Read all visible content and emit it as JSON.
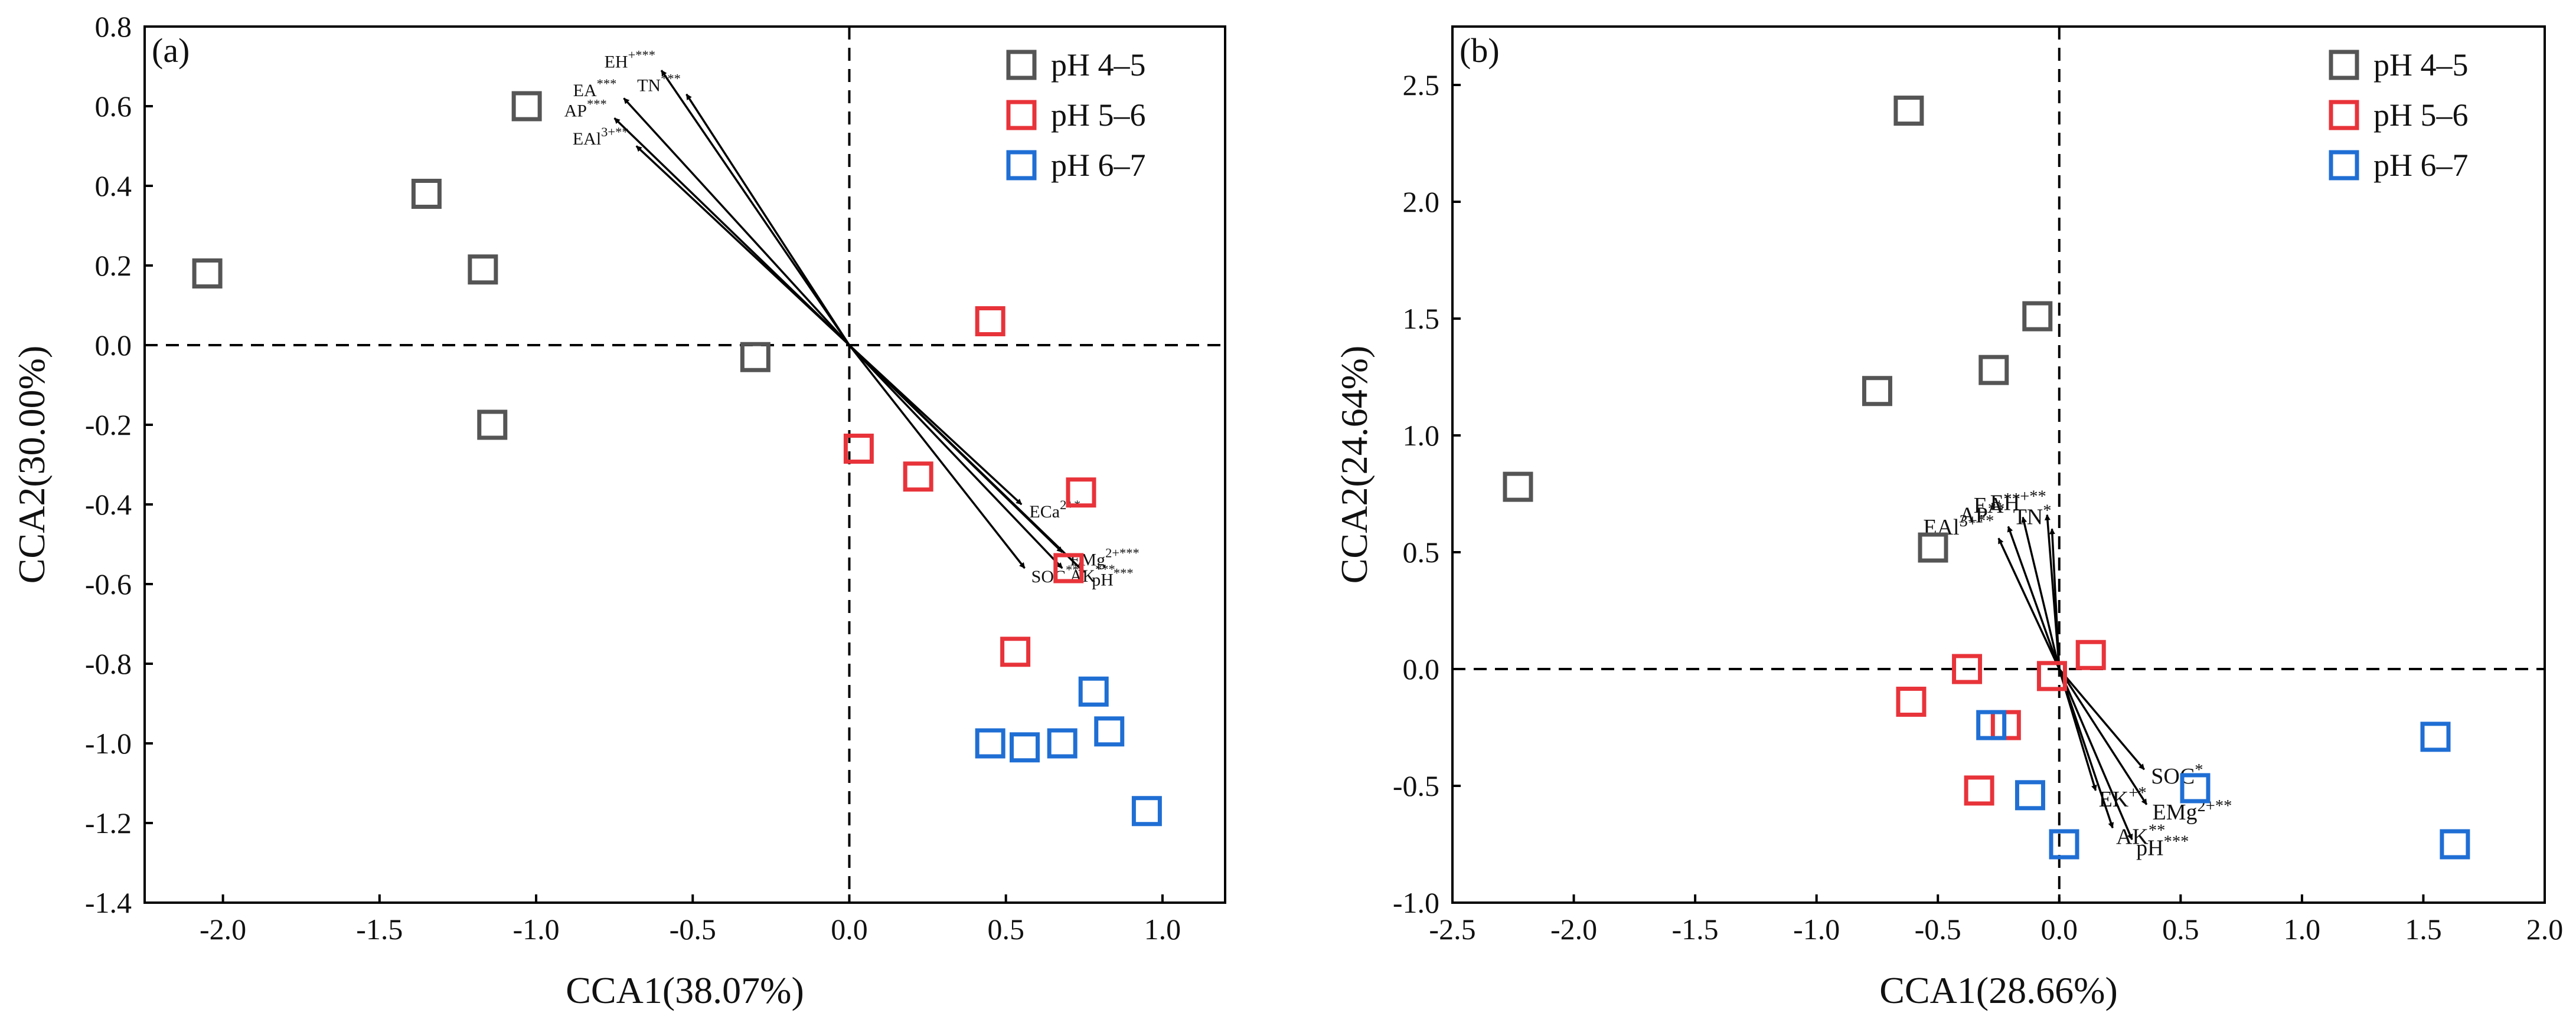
{
  "chart_data": [
    {
      "type": "scatter",
      "panel_label": "(a)",
      "xlabel": "CCA1(38.07%)",
      "ylabel": "CCA2(30.00%)",
      "xlim": [
        -2.25,
        1.2
      ],
      "ylim": [
        -1.4,
        0.8
      ],
      "x_ticks": [
        -2.0,
        -1.5,
        -1.0,
        -0.5,
        0.0,
        0.5,
        1.0
      ],
      "x_tick_labels": [
        "-2.0",
        "-1.5",
        "-1.0",
        "-0.5",
        "0.0",
        "0.5",
        "1.0"
      ],
      "y_ticks": [
        -1.4,
        -1.2,
        -1.0,
        -0.8,
        -0.6,
        -0.4,
        -0.2,
        0.0,
        0.2,
        0.4,
        0.6,
        0.8
      ],
      "y_tick_labels": [
        "-1.4",
        "-1.2",
        "-1.0",
        "-0.8",
        "-0.6",
        "-0.4",
        "-0.2",
        "0.0",
        "0.2",
        "0.4",
        "0.6",
        "0.8"
      ],
      "legend_position": "top-right",
      "series": [
        {
          "name": "pH 4–5",
          "color": "#555555",
          "points": [
            [
              -2.05,
              0.18
            ],
            [
              -1.35,
              0.38
            ],
            [
              -1.17,
              0.19
            ],
            [
              -1.03,
              0.6
            ],
            [
              -1.14,
              -0.2
            ],
            [
              -0.3,
              -0.03
            ]
          ]
        },
        {
          "name": "pH 5–6",
          "color": "#E8333A",
          "points": [
            [
              0.45,
              0.06
            ],
            [
              0.03,
              -0.26
            ],
            [
              0.22,
              -0.33
            ],
            [
              0.74,
              -0.37
            ],
            [
              0.7,
              -0.56
            ],
            [
              0.53,
              -0.77
            ]
          ]
        },
        {
          "name": "pH 6–7",
          "color": "#1F6ED4",
          "points": [
            [
              0.78,
              -0.87
            ],
            [
              0.83,
              -0.97
            ],
            [
              0.68,
              -1.0
            ],
            [
              0.56,
              -1.01
            ],
            [
              0.45,
              -1.0
            ],
            [
              0.95,
              -1.17
            ]
          ]
        }
      ],
      "vectors": [
        {
          "label": "EH",
          "sup": "+***",
          "x": -0.6,
          "y": 0.69
        },
        {
          "label": "TN",
          "sup": "***",
          "x": -0.52,
          "y": 0.63
        },
        {
          "label": "EA",
          "sup": "***",
          "x": -0.72,
          "y": 0.62
        },
        {
          "label": "AP",
          "sup": "***",
          "x": -0.75,
          "y": 0.57
        },
        {
          "label": "EAl",
          "sup": "3+**",
          "x": -0.68,
          "y": 0.5
        },
        {
          "label": "ECa",
          "sup": "2+*",
          "x": 0.55,
          "y": -0.4
        },
        {
          "label": "EMg",
          "sup": "2+***",
          "x": 0.68,
          "y": -0.52
        },
        {
          "label": "pH",
          "sup": "***",
          "x": 0.75,
          "y": -0.57
        },
        {
          "label": "SOC",
          "sup": "**",
          "x": 0.56,
          "y": -0.56
        },
        {
          "label": "AK",
          "sup": "***",
          "x": 0.68,
          "y": -0.56
        }
      ]
    },
    {
      "type": "scatter",
      "panel_label": "(b)",
      "xlabel": "CCA1(28.66%)",
      "ylabel": "CCA2(24.64%)",
      "xlim": [
        -2.5,
        2.0
      ],
      "ylim": [
        -1.0,
        2.75
      ],
      "x_ticks": [
        -2.5,
        -2.0,
        -1.5,
        -1.0,
        -0.5,
        0.0,
        0.5,
        1.0,
        1.5,
        2.0
      ],
      "x_tick_labels": [
        "-2.5",
        "-2.0",
        "-1.5",
        "-1.0",
        "-0.5",
        "0.0",
        "0.5",
        "1.0",
        "1.5",
        "2.0"
      ],
      "y_ticks": [
        -1.0,
        -0.5,
        0.0,
        0.5,
        1.0,
        1.5,
        2.0,
        2.5
      ],
      "y_tick_labels": [
        "-1.0",
        "-0.5",
        "0.0",
        "0.5",
        "1.0",
        "1.5",
        "2.0",
        "2.5"
      ],
      "legend_position": "top-right",
      "series": [
        {
          "name": "pH 4–5",
          "color": "#555555",
          "points": [
            [
              -0.62,
              2.39
            ],
            [
              -0.09,
              1.51
            ],
            [
              -0.27,
              1.28
            ],
            [
              -0.75,
              1.19
            ],
            [
              -2.23,
              0.78
            ],
            [
              -0.52,
              0.52
            ]
          ]
        },
        {
          "name": "pH 5–6",
          "color": "#E8333A",
          "points": [
            [
              -0.38,
              0.0
            ],
            [
              0.13,
              0.06
            ],
            [
              -0.03,
              -0.03
            ],
            [
              -0.61,
              -0.14
            ],
            [
              -0.22,
              -0.24
            ],
            [
              -0.33,
              -0.52
            ]
          ]
        },
        {
          "name": "pH 6–7",
          "color": "#1F6ED4",
          "points": [
            [
              -0.28,
              -0.24
            ],
            [
              -0.12,
              -0.54
            ],
            [
              0.02,
              -0.75
            ],
            [
              0.56,
              -0.51
            ],
            [
              1.55,
              -0.29
            ],
            [
              1.63,
              -0.75
            ]
          ]
        }
      ],
      "vectors": [
        {
          "label": "EA",
          "sup": "**",
          "x": -0.15,
          "y": 0.65
        },
        {
          "label": "EH",
          "sup": "+**",
          "x": -0.05,
          "y": 0.66
        },
        {
          "label": "AP",
          "sup": "**",
          "x": -0.21,
          "y": 0.61
        },
        {
          "label": "TN",
          "sup": "*",
          "x": -0.03,
          "y": 0.6
        },
        {
          "label": "EAl",
          "sup": "3+**",
          "x": -0.25,
          "y": 0.56
        },
        {
          "label": "SOC",
          "sup": "*",
          "x": 0.35,
          "y": -0.43
        },
        {
          "label": "EMg",
          "sup": "2+**",
          "x": 0.36,
          "y": -0.58
        },
        {
          "label": "EK",
          "sup": "+*",
          "x": 0.15,
          "y": -0.52
        },
        {
          "label": "AK",
          "sup": "**",
          "x": 0.22,
          "y": -0.68
        },
        {
          "label": "pH",
          "sup": "***",
          "x": 0.3,
          "y": -0.73
        }
      ]
    }
  ]
}
